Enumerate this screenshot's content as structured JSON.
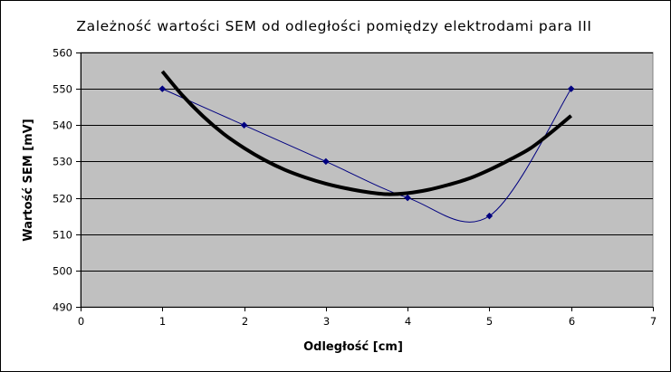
{
  "chart_data": {
    "type": "scatter",
    "title": "Zależność wartości SEM od odległości pomiędzy elektrodami para III",
    "xlabel": "Odległość [cm]",
    "ylabel": "Wartość SEM [mV]",
    "xlim": [
      0,
      7
    ],
    "ylim": [
      490,
      560
    ],
    "xticks": [
      0,
      1,
      2,
      3,
      4,
      5,
      6,
      7
    ],
    "yticks": [
      490,
      500,
      510,
      520,
      530,
      540,
      550,
      560
    ],
    "grid": "horizontal",
    "legend": "none",
    "plot_background": "#c0c0c0",
    "series": [
      {
        "style": "smoothed-line-with-diamond-markers",
        "color": "#000080",
        "x": [
          1,
          2,
          3,
          4,
          5,
          6
        ],
        "y": [
          550,
          540,
          530,
          520,
          515,
          550
        ]
      }
    ],
    "trendline": {
      "type": "polynomial",
      "color": "#000000",
      "x": [
        1.0,
        1.25,
        1.5,
        1.75,
        2.0,
        2.25,
        2.5,
        2.75,
        3.0,
        3.25,
        3.5,
        3.75,
        4.0,
        4.25,
        4.5,
        4.75,
        5.0,
        5.25,
        5.5,
        5.75,
        6.0
      ],
      "y": [
        554.8,
        548.1,
        542.4,
        537.6,
        533.7,
        530.4,
        527.7,
        525.6,
        523.9,
        522.6,
        521.6,
        521.0,
        521.3,
        522.2,
        523.6,
        525.3,
        527.7,
        530.5,
        533.6,
        537.9,
        542.6
      ]
    }
  }
}
